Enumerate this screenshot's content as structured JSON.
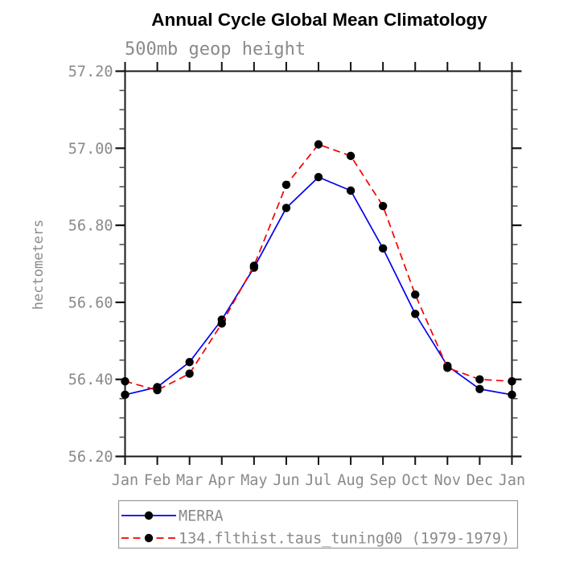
{
  "chart": {
    "title": "Annual Cycle Global Mean Climatology",
    "subtitle": "500mb geop height",
    "ylabel": "hectometers"
  },
  "chart_data": {
    "type": "line",
    "x_categories": [
      "Jan",
      "Feb",
      "Mar",
      "Apr",
      "May",
      "Jun",
      "Jul",
      "Aug",
      "Sep",
      "Oct",
      "Nov",
      "Dec",
      "Jan"
    ],
    "series": [
      {
        "name": "MERRA",
        "color": "#0000ee",
        "line_style": "solid",
        "marker": "filled-circle",
        "marker_color": "#000000",
        "values": [
          56.36,
          56.38,
          56.445,
          56.555,
          56.69,
          56.845,
          56.925,
          56.89,
          56.74,
          56.57,
          56.435,
          56.375,
          56.36
        ]
      },
      {
        "name": "134.flthist.taus_tuning00 (1979-1979)",
        "color": "#f40000",
        "line_style": "dashed",
        "marker": "filled-circle",
        "marker_color": "#000000",
        "values": [
          56.395,
          56.372,
          56.415,
          56.545,
          56.695,
          56.905,
          57.01,
          56.98,
          56.85,
          56.62,
          56.43,
          56.4,
          56.395
        ]
      }
    ],
    "ylim": [
      56.2,
      57.2
    ],
    "y_major_tick_step": 0.2,
    "y_minor_tick_step": 0.05,
    "y_tick_decimals": 2,
    "y_tick_labels": [
      "56.20",
      "56.40",
      "56.60",
      "56.80",
      "57.00",
      "57.20"
    ],
    "grid": false,
    "frame": "box-with-outward-ticks",
    "legend_position": "below-axis"
  },
  "colors": {
    "background": "#ffffff",
    "frame": "#1a1a1a",
    "major_tick": "#111111",
    "minor_tick": "#4a4a4a",
    "label_text": "#8a8a8a",
    "title_text": "#000000",
    "legend_border": "#999999"
  }
}
